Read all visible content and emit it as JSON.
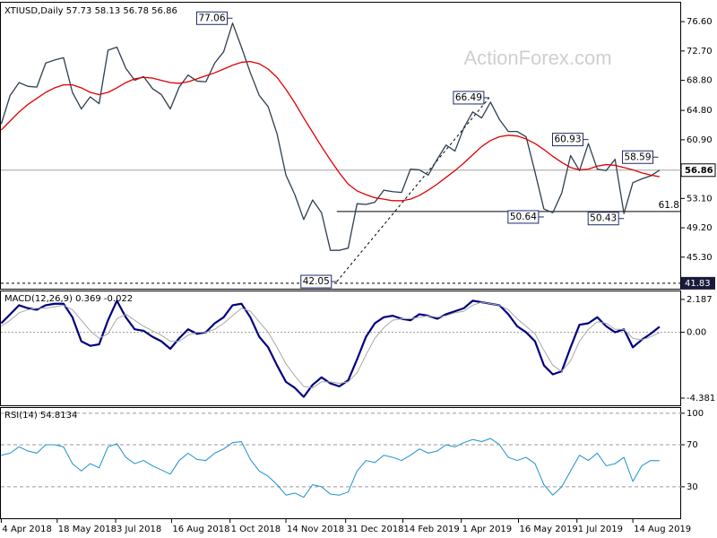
{
  "chart_data": [
    {
      "type": "line",
      "title": "XTIUSD,Daily  57.73 58.13 56.78 56.86",
      "watermark": "ActionForex.com",
      "x": [
        "2018-04-04",
        "2018-04-11",
        "2018-04-18",
        "2018-04-25",
        "2018-05-02",
        "2018-05-09",
        "2018-05-16",
        "2018-05-23",
        "2018-05-30",
        "2018-06-06",
        "2018-06-13",
        "2018-06-20",
        "2018-06-27",
        "2018-07-04",
        "2018-07-11",
        "2018-07-18",
        "2018-07-25",
        "2018-08-01",
        "2018-08-08",
        "2018-08-15",
        "2018-08-22",
        "2018-08-29",
        "2018-09-05",
        "2018-09-12",
        "2018-09-19",
        "2018-09-26",
        "2018-10-03",
        "2018-10-10",
        "2018-10-17",
        "2018-10-24",
        "2018-10-31",
        "2018-11-07",
        "2018-11-14",
        "2018-11-21",
        "2018-11-28",
        "2018-12-05",
        "2018-12-12",
        "2018-12-19",
        "2018-12-26",
        "2019-01-02",
        "2019-01-09",
        "2019-01-16",
        "2019-01-23",
        "2019-01-30",
        "2019-02-06",
        "2019-02-13",
        "2019-02-20",
        "2019-02-27",
        "2019-03-06",
        "2019-03-13",
        "2019-03-20",
        "2019-03-27",
        "2019-04-03",
        "2019-04-10",
        "2019-04-17",
        "2019-04-24",
        "2019-05-01",
        "2019-05-08",
        "2019-05-15",
        "2019-05-22",
        "2019-05-29",
        "2019-06-05",
        "2019-06-12",
        "2019-06-19",
        "2019-06-26",
        "2019-07-03",
        "2019-07-10",
        "2019-07-17",
        "2019-07-24",
        "2019-07-31",
        "2019-08-07",
        "2019-08-14",
        "2019-08-21",
        "2019-08-28",
        "2019-09-04"
      ],
      "xlim": [
        "2018-04-03",
        "2019-09-21"
      ],
      "ylim": [
        41.1,
        79.0
      ],
      "yticks": [
        {
          "value": 76.6,
          "label": "76.60"
        },
        {
          "value": 72.7,
          "label": "72.70"
        },
        {
          "value": 68.8,
          "label": "68.80"
        },
        {
          "value": 64.8,
          "label": "64.80"
        },
        {
          "value": 60.9,
          "label": "60.90"
        },
        {
          "value": 53.1,
          "label": "53.10"
        },
        {
          "value": 49.2,
          "label": "49.20"
        },
        {
          "value": 45.3,
          "label": "45.30"
        }
      ],
      "series": [
        {
          "color": "#2e3e50",
          "values": [
            63.0,
            66.8,
            68.5,
            68.0,
            67.9,
            71.1,
            71.5,
            71.8,
            67.2,
            65.0,
            66.6,
            65.7,
            72.8,
            73.2,
            70.4,
            68.8,
            69.3,
            67.7,
            66.9,
            65.0,
            67.9,
            69.5,
            68.7,
            68.6,
            71.1,
            72.6,
            76.4,
            73.2,
            69.8,
            66.8,
            65.3,
            61.7,
            56.2,
            53.6,
            50.3,
            52.9,
            51.2,
            46.2,
            46.2,
            46.5,
            52.4,
            52.3,
            52.6,
            54.2,
            54.0,
            53.9,
            57.0,
            56.9,
            56.2,
            58.3,
            60.2,
            59.4,
            62.5,
            64.6,
            63.8,
            65.9,
            63.6,
            62.0,
            62.0,
            61.3,
            56.6,
            51.7,
            51.2,
            53.8,
            58.8,
            56.8,
            60.4,
            57.0,
            56.8,
            58.3,
            51.1,
            55.2,
            55.7,
            56.1,
            56.86
          ]
        },
        {
          "color": "#e00000",
          "values": [
            62.2,
            63.4,
            64.6,
            65.6,
            66.4,
            67.2,
            67.8,
            68.2,
            68.2,
            67.8,
            67.2,
            66.9,
            67.2,
            67.8,
            68.5,
            69.0,
            69.2,
            69.1,
            68.8,
            68.5,
            68.4,
            68.6,
            69.0,
            69.4,
            69.8,
            70.3,
            70.8,
            71.2,
            71.3,
            71.0,
            70.3,
            69.2,
            67.6,
            65.8,
            63.8,
            61.9,
            60.0,
            58.2,
            56.5,
            55.0,
            54.1,
            53.6,
            53.2,
            53.0,
            52.8,
            52.8,
            53.0,
            53.5,
            54.2,
            55.0,
            55.9,
            56.8,
            57.8,
            58.9,
            60.0,
            60.8,
            61.3,
            61.5,
            61.4,
            61.0,
            60.4,
            59.6,
            58.7,
            57.9,
            57.2,
            56.9,
            57.0,
            57.4,
            57.6,
            57.5,
            57.2,
            56.9,
            56.5,
            56.2,
            56.0
          ]
        }
      ],
      "annotations": [
        {
          "x": "2018-10-03",
          "value": 77.06
        },
        {
          "x": "2019-04-23",
          "value": 66.49
        },
        {
          "x": "2019-07-10",
          "value": 60.93
        },
        {
          "x": "2019-09-03",
          "value": 58.59
        },
        {
          "x": "2019-06-05",
          "value": 50.64
        },
        {
          "x": "2019-08-07",
          "value": 50.43
        },
        {
          "x": "2018-12-24",
          "value": 42.05
        }
      ],
      "trendline": {
        "x": [
          "2018-12-24",
          "2019-04-23"
        ],
        "y": [
          42.05,
          66.49
        ]
      },
      "levels": [
        {
          "label": "61.8",
          "value": 51.36,
          "from": "2018-12-24"
        }
      ],
      "last_price": 56.86,
      "support": 41.83
    },
    {
      "type": "line",
      "title": "MACD(12,26,9) 0.369 -0.022",
      "ylim": [
        -4.86,
        2.72
      ],
      "yticks": [
        2.187,
        {
          "value": 0,
          "label": "0.00"
        },
        -4.381
      ],
      "zero_line": true,
      "series": [
        {
          "color": "#000080",
          "width": 2.2,
          "values": [
            0.6,
            1.2,
            1.8,
            1.6,
            1.5,
            1.8,
            1.9,
            1.9,
            1.0,
            -0.6,
            -0.9,
            -0.8,
            0.8,
            2.1,
            1.0,
            0.2,
            0.1,
            -0.3,
            -0.6,
            -1.1,
            -0.4,
            0.2,
            -0.1,
            0.0,
            0.6,
            1.0,
            1.8,
            1.9,
            1.0,
            -0.3,
            -1.0,
            -2.2,
            -3.3,
            -3.7,
            -4.3,
            -3.5,
            -3.0,
            -3.4,
            -3.6,
            -3.2,
            -1.8,
            -0.3,
            0.6,
            1.0,
            1.1,
            0.9,
            0.8,
            1.2,
            1.1,
            0.9,
            1.2,
            1.4,
            1.6,
            2.1,
            2.0,
            1.9,
            1.8,
            1.2,
            0.4,
            0.0,
            -0.6,
            -2.2,
            -2.8,
            -2.6,
            -1.0,
            0.5,
            0.6,
            1.0,
            0.4,
            0.0,
            0.2,
            -1.0,
            -0.5,
            -0.1,
            0.369
          ]
        },
        {
          "color": "#a8a8a8",
          "width": 1,
          "values": [
            0.4,
            0.8,
            1.3,
            1.5,
            1.6,
            1.6,
            1.7,
            1.8,
            1.5,
            0.8,
            0.1,
            -0.4,
            -0.1,
            0.9,
            1.2,
            0.8,
            0.4,
            0.1,
            -0.2,
            -0.6,
            -0.6,
            -0.2,
            0.0,
            0.0,
            0.2,
            0.6,
            1.1,
            1.6,
            1.4,
            0.7,
            0.0,
            -1.0,
            -2.1,
            -2.9,
            -3.6,
            -3.7,
            -3.3,
            -3.3,
            -3.4,
            -3.3,
            -2.7,
            -1.5,
            -0.4,
            0.3,
            0.8,
            0.9,
            0.9,
            1.0,
            1.1,
            1.0,
            1.1,
            1.3,
            1.4,
            1.8,
            2.0,
            1.9,
            1.8,
            1.5,
            0.9,
            0.4,
            -0.1,
            -1.2,
            -2.2,
            -2.6,
            -1.9,
            -0.6,
            0.2,
            0.7,
            0.6,
            0.2,
            0.2,
            -0.4,
            -0.5,
            -0.3,
            -0.022
          ]
        }
      ]
    },
    {
      "type": "line",
      "title": "RSI(14) 54.8134",
      "ylim": [
        0,
        105
      ],
      "yticks": [
        100,
        70,
        30
      ],
      "grid": true,
      "series": [
        {
          "color": "#1e90d0",
          "width": 1,
          "values": [
            60,
            62,
            68,
            64,
            62,
            70,
            70,
            68,
            52,
            45,
            52,
            48,
            68,
            71,
            58,
            52,
            55,
            50,
            46,
            42,
            55,
            62,
            56,
            55,
            62,
            66,
            72,
            73,
            56,
            45,
            40,
            32,
            22,
            24,
            20,
            32,
            30,
            23,
            22,
            25,
            45,
            55,
            53,
            60,
            58,
            55,
            60,
            66,
            62,
            64,
            70,
            68,
            72,
            75,
            73,
            76,
            70,
            58,
            55,
            58,
            52,
            32,
            22,
            30,
            45,
            60,
            55,
            62,
            50,
            52,
            58,
            35,
            50,
            55,
            54.8134
          ]
        }
      ],
      "xticks": [
        {
          "value": "2018-04-04",
          "label": "4 Apr 2018"
        },
        {
          "value": "2018-05-18",
          "label": "18 May 2018"
        },
        {
          "value": "2018-07-03",
          "label": "3 Jul 2018"
        },
        {
          "value": "2018-08-16",
          "label": "16 Aug 2018"
        },
        {
          "value": "2018-10-01",
          "label": "1 Oct 2018"
        },
        {
          "value": "2018-11-14",
          "label": "14 Nov 2018"
        },
        {
          "value": "2018-12-31",
          "label": "31 Dec 2018"
        },
        {
          "value": "2019-02-14",
          "label": "14 Feb 2019"
        },
        {
          "value": "2019-04-01",
          "label": "1 Apr 2019"
        },
        {
          "value": "2019-05-16",
          "label": "16 May 2019"
        },
        {
          "value": "2019-07-01",
          "label": "1 Jul 2019"
        },
        {
          "value": "2019-08-14",
          "label": "14 Aug 2019"
        }
      ]
    }
  ]
}
